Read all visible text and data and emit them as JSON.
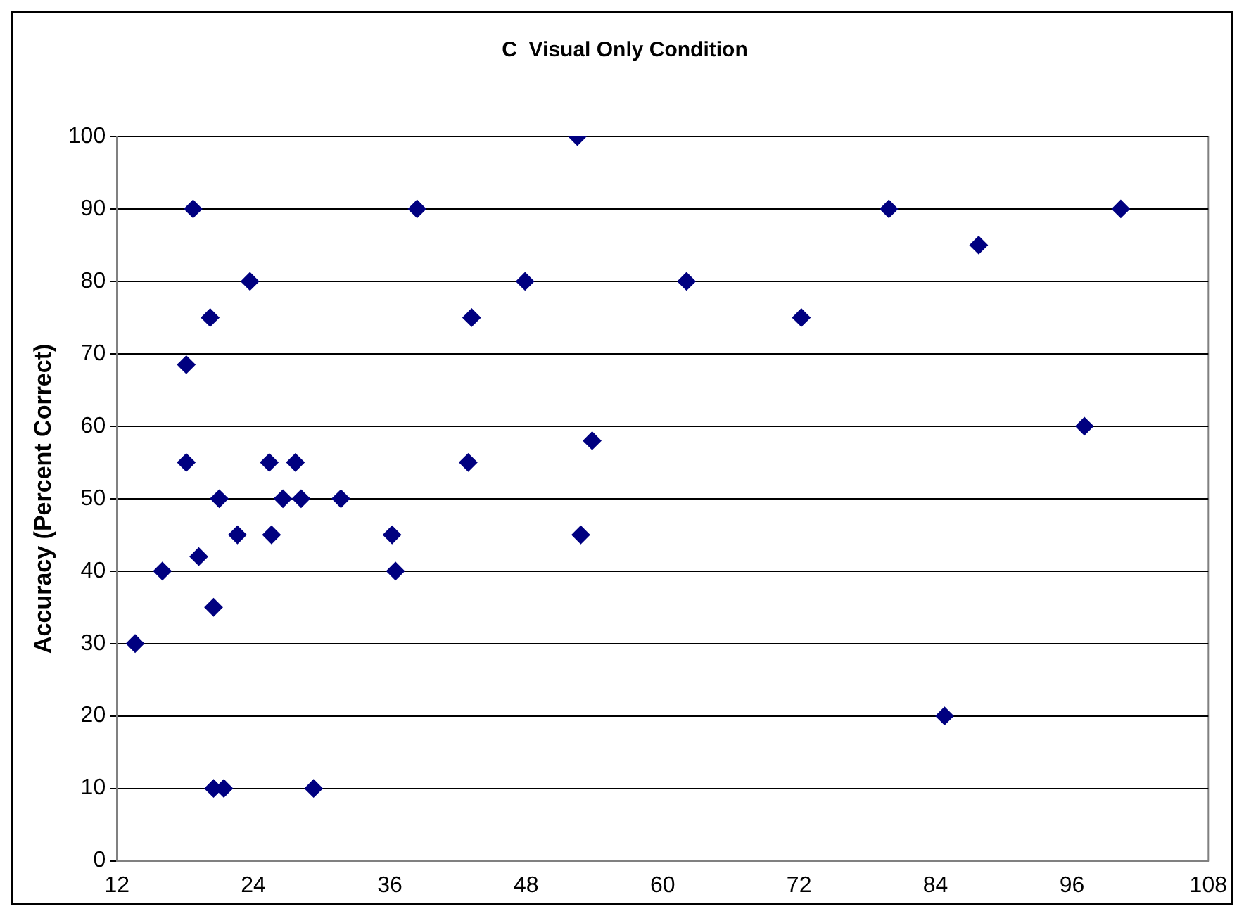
{
  "chart_data": {
    "type": "scatter",
    "title": "C  Visual Only Condition",
    "ylabel": "Accuracy (Percent Correct)",
    "x": [
      13.6,
      16,
      18.1,
      18.1,
      18.7,
      19.2,
      20.2,
      20.5,
      20.5,
      21,
      21.4,
      22.6,
      23.7,
      25.4,
      25.6,
      26.6,
      27.7,
      28.2,
      29.3,
      31.7,
      36.2,
      36.5,
      38.4,
      42.9,
      43.2,
      47.9,
      52.5,
      52.8,
      53.8,
      62.1,
      72.2,
      79.9,
      84.8,
      87.8,
      97.1,
      100.3
    ],
    "values": [
      30,
      40,
      68.5,
      55,
      90,
      42,
      75,
      35,
      10,
      50,
      10,
      45,
      80,
      55,
      45,
      50,
      55,
      50,
      10,
      50,
      45,
      40,
      90,
      55,
      75,
      80,
      100,
      45,
      58,
      80,
      75,
      90,
      20,
      85,
      60,
      90
    ],
    "color": "#000080",
    "xlim": [
      12,
      108
    ],
    "xticks": [
      12,
      24,
      36,
      48,
      60,
      72,
      84,
      96,
      108
    ],
    "ylim": [
      0,
      100
    ],
    "yticks": [
      0,
      10,
      20,
      30,
      40,
      50,
      60,
      70,
      80,
      90,
      100
    ],
    "grid": "y",
    "marker": "diamond",
    "legend": false
  }
}
